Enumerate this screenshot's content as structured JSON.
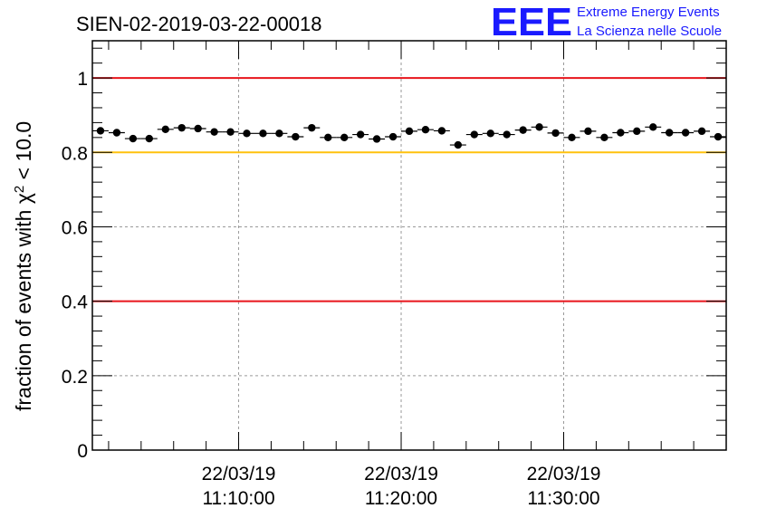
{
  "chart_data": {
    "type": "scatter",
    "title": "SIEN-02-2019-03-22-00018",
    "ylabel": "fraction of events with χ² < 10.0",
    "ylabel_parts": {
      "main": "fraction of events with χ",
      "sup": "2",
      "tail": " < 10.0"
    },
    "xlabel": "",
    "ylim": [
      0,
      1.1
    ],
    "xlim_minutes": [
      0,
      39
    ],
    "y_ticks": [
      0,
      0.2,
      0.4,
      0.6,
      0.8,
      1
    ],
    "y_tick_labels": [
      "0",
      "0.2",
      "0.4",
      "0.6",
      "0.8",
      "1"
    ],
    "x_ticks": [
      {
        "minute": 9,
        "date": "22/03/19",
        "time": "11:10:00"
      },
      {
        "minute": 19,
        "date": "22/03/19",
        "time": "11:20:00"
      },
      {
        "minute": 29,
        "date": "22/03/19",
        "time": "11:30:00"
      }
    ],
    "grid": true,
    "reference_lines": [
      {
        "y": 1.0,
        "color": "#e8141b"
      },
      {
        "y": 0.8,
        "color": "#ffc20e"
      },
      {
        "y": 0.4,
        "color": "#e8141b"
      }
    ],
    "x": [
      0.5,
      1.5,
      2.5,
      3.5,
      4.5,
      5.5,
      6.5,
      7.5,
      8.5,
      9.5,
      10.5,
      11.5,
      12.5,
      13.5,
      14.5,
      15.5,
      16.5,
      17.5,
      18.5,
      19.5,
      20.5,
      21.5,
      22.5,
      23.5,
      24.5,
      25.5,
      26.5,
      27.5,
      28.5,
      29.5,
      30.5,
      31.5,
      32.5,
      33.5,
      34.5,
      35.5,
      36.5,
      37.5,
      38.5
    ],
    "values": [
      0.858,
      0.853,
      0.837,
      0.837,
      0.862,
      0.866,
      0.864,
      0.855,
      0.855,
      0.851,
      0.851,
      0.851,
      0.842,
      0.866,
      0.84,
      0.84,
      0.848,
      0.836,
      0.842,
      0.857,
      0.861,
      0.858,
      0.82,
      0.848,
      0.851,
      0.848,
      0.86,
      0.868,
      0.852,
      0.84,
      0.857,
      0.84,
      0.853,
      0.857,
      0.868,
      0.853,
      0.853,
      0.857,
      0.842
    ],
    "marker_color": "#000000"
  },
  "logo": {
    "mark": "EEE",
    "line1": "Extreme Energy Events",
    "line2": "La Scienza nelle Scuole",
    "color": "#1a1aff"
  }
}
